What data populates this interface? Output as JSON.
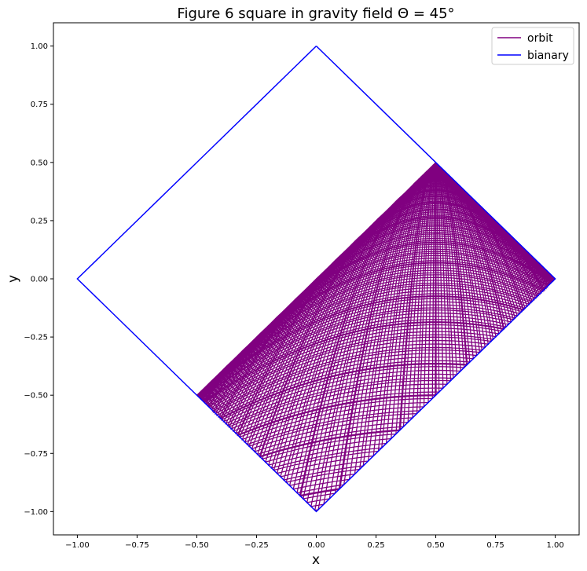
{
  "chart_data": {
    "type": "line",
    "title": "Figure 6 square in gravity field Θ = 45°",
    "xlabel": "x",
    "ylabel": "y",
    "xlim": [
      -1.1,
      1.1
    ],
    "ylim": [
      -1.1,
      1.1
    ],
    "xticks": [
      -1.0,
      -0.75,
      -0.5,
      -0.25,
      0.0,
      0.25,
      0.5,
      0.75,
      1.0
    ],
    "yticks": [
      -1.0,
      -0.75,
      -0.5,
      -0.25,
      0.0,
      0.25,
      0.5,
      0.75,
      1.0
    ],
    "xtick_labels": [
      "−1.00",
      "−0.75",
      "−0.50",
      "−0.25",
      "0.00",
      "0.25",
      "0.50",
      "0.75",
      "1.00"
    ],
    "ytick_labels": [
      "−1.00",
      "−0.75",
      "−0.50",
      "−0.25",
      "0.00",
      "0.25",
      "0.50",
      "0.75",
      "1.00"
    ],
    "grid": false,
    "legend_position": "top-right",
    "series": [
      {
        "name": "orbit",
        "color": "#800080",
        "kind": "ballistic arcs bouncing inside the square under gravity along -y",
        "gravity_direction": "down"
      },
      {
        "name": "bianary",
        "color": "#0000ff",
        "x": [
          0.0,
          1.0,
          0.0,
          -1.0,
          0.0
        ],
        "y": [
          1.0,
          0.0,
          -1.0,
          0.0,
          1.0
        ]
      }
    ]
  }
}
